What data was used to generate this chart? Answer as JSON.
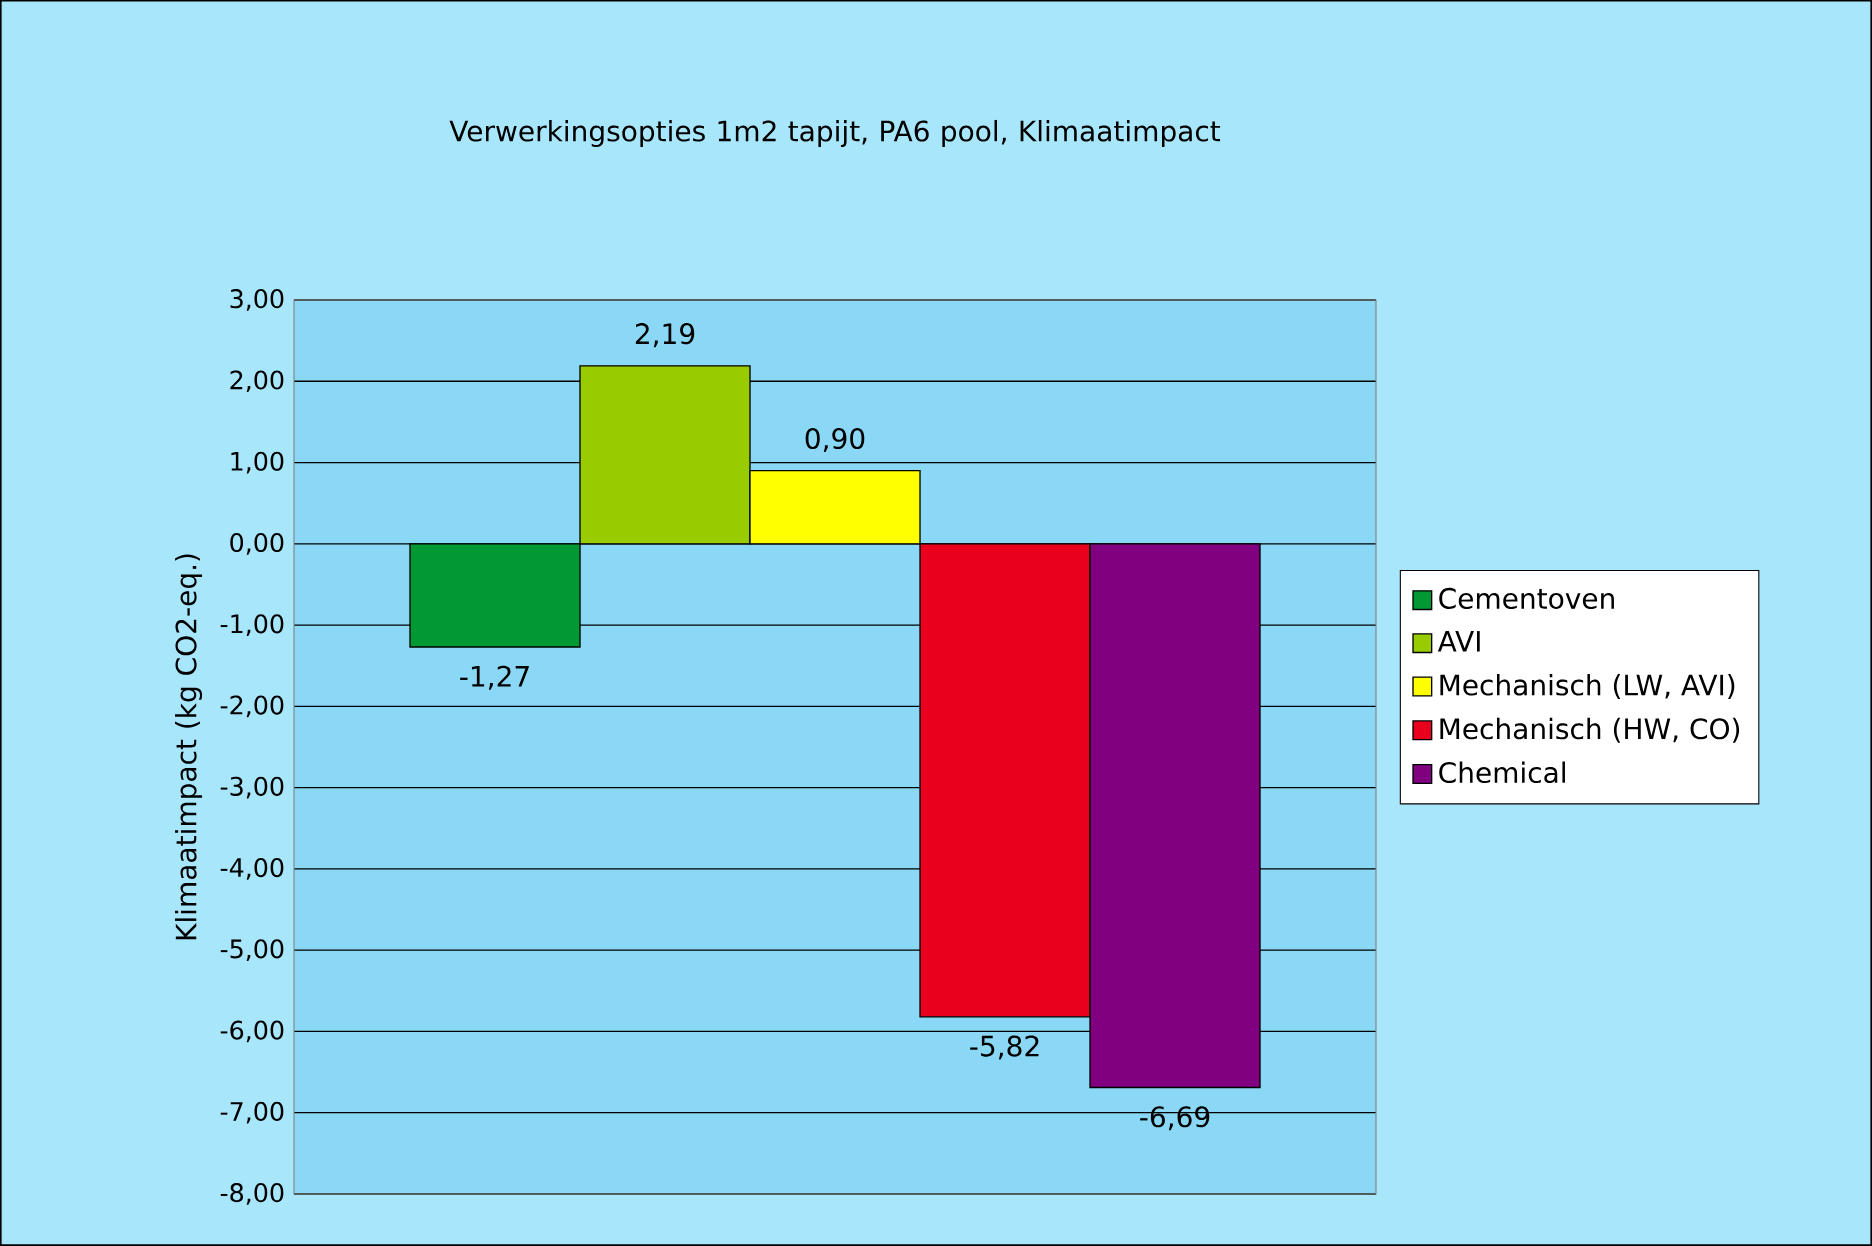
{
  "chart_data": {
    "type": "bar",
    "title": "Verwerkingsopties 1m2 tapijt, PA6 pool, Klimaatimpact",
    "ylabel": "Klimaatimpact (kg CO2-eq.)",
    "categories": [
      null
    ],
    "series": [
      {
        "name": "Cementoven",
        "color": "#009933",
        "values": [
          -1.27
        ],
        "value_labels": [
          "-1,27"
        ]
      },
      {
        "name": "AVI",
        "color": "#99cc00",
        "values": [
          2.19
        ],
        "value_labels": [
          "2,19"
        ]
      },
      {
        "name": "Mechanisch (LW, AVI)",
        "color": "#ffff00",
        "values": [
          0.9
        ],
        "value_labels": [
          "0,90"
        ]
      },
      {
        "name": "Mechanisch (HW, CO)",
        "color": "#e8001c",
        "values": [
          -5.82
        ],
        "value_labels": [
          "-5,82"
        ]
      },
      {
        "name": "Chemical",
        "color": "#800080",
        "values": [
          -6.69
        ],
        "value_labels": [
          "-6,69"
        ]
      }
    ],
    "ylim": [
      -8,
      3
    ],
    "yticks": [
      {
        "value": 3,
        "label": "3,00"
      },
      {
        "value": 2,
        "label": "2,00"
      },
      {
        "value": 1,
        "label": "1,00"
      },
      {
        "value": 0,
        "label": "0,00"
      },
      {
        "value": -1,
        "label": "-1,00"
      },
      {
        "value": -2,
        "label": "-2,00"
      },
      {
        "value": -3,
        "label": "-3,00"
      },
      {
        "value": -4,
        "label": "-4,00"
      },
      {
        "value": -5,
        "label": "-5,00"
      },
      {
        "value": -6,
        "label": "-6,00"
      },
      {
        "value": -7,
        "label": "-7,00"
      },
      {
        "value": -8,
        "label": "-8,00"
      }
    ],
    "grid": "y",
    "legend": "right"
  }
}
